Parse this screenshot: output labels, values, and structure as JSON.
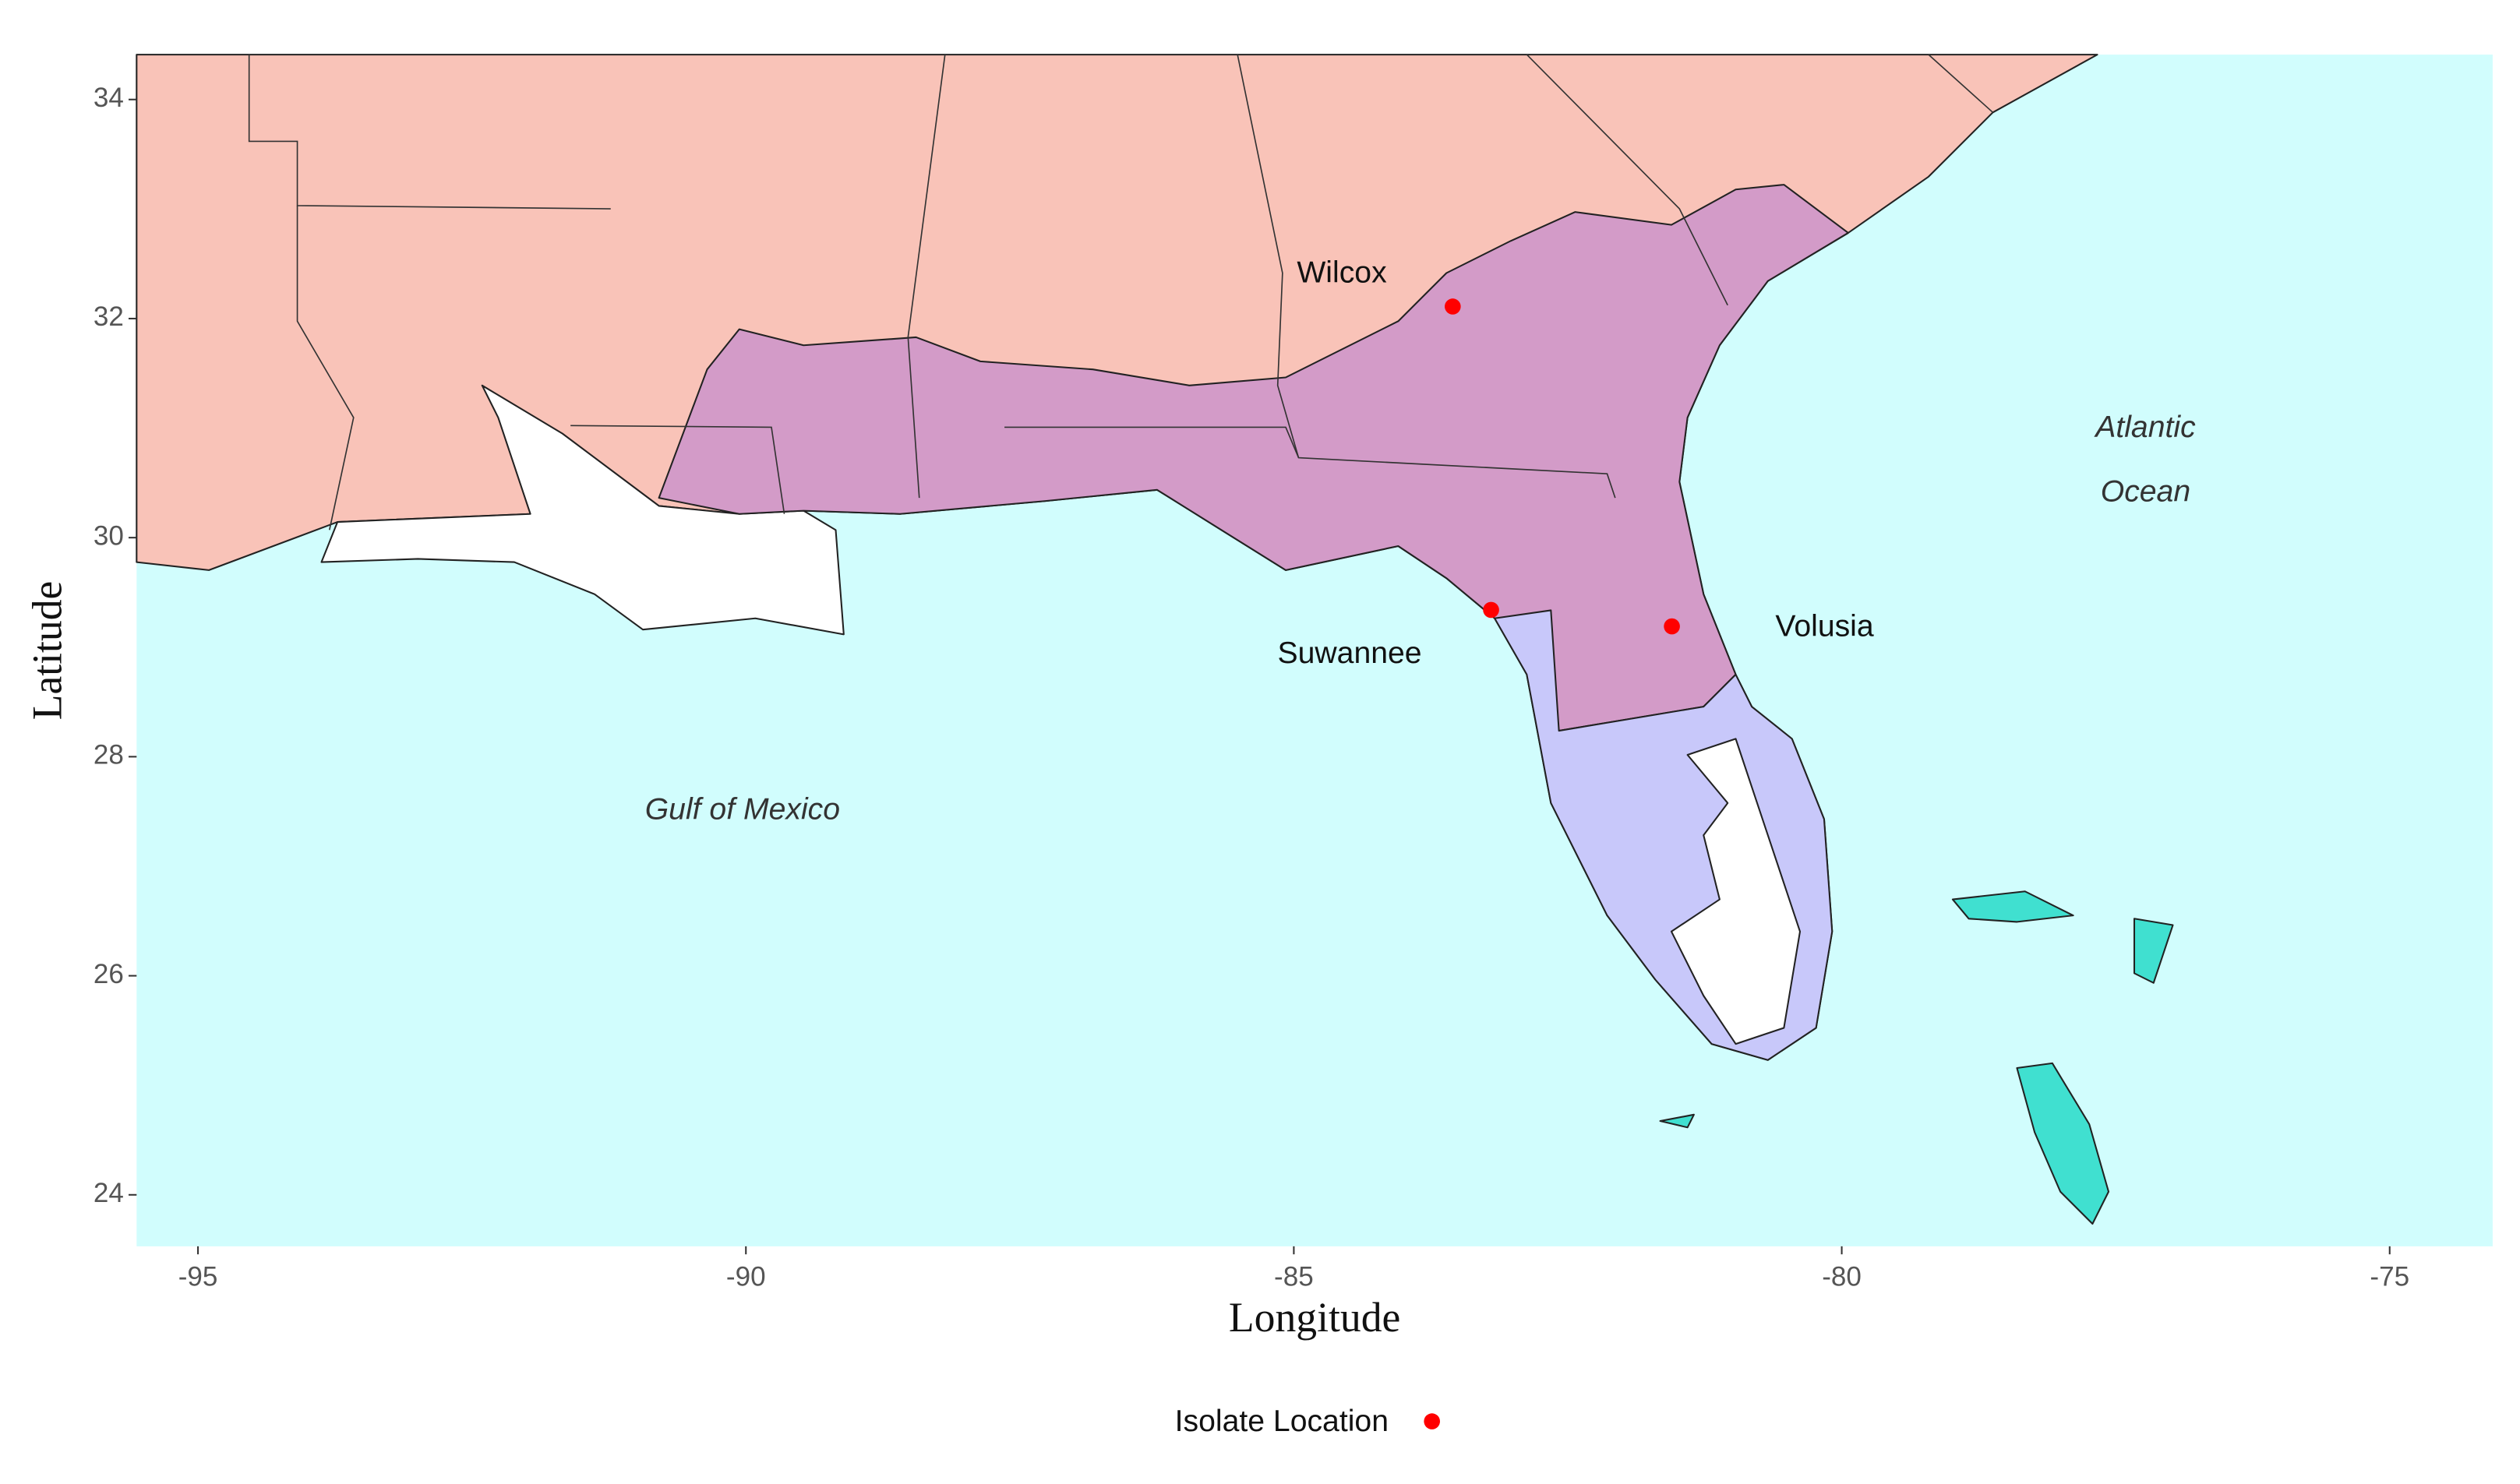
{
  "chart_data": {
    "type": "scatter",
    "x_label": "Longitude",
    "y_label": "Latitude",
    "xlim": [
      -95.56,
      -74.06
    ],
    "ylim": [
      23.53,
      34.41
    ],
    "xticks": [
      -95,
      -90,
      -85,
      -80,
      -75
    ],
    "yticks": [
      24,
      26,
      28,
      30,
      32,
      34
    ],
    "series": [
      {
        "name": "Isolate Location",
        "color": "#ff0000",
        "x": [
          -83.55,
          -83.2,
          -81.55
        ],
        "values": [
          32.11,
          29.34,
          29.19
        ],
        "labels": [
          "Wilcox",
          "Suwannee",
          "Volusia"
        ]
      }
    ],
    "annotations": [
      "Gulf of Mexico",
      "Atlantic",
      "Ocean"
    ],
    "legend": "bottom",
    "grid": false
  }
}
